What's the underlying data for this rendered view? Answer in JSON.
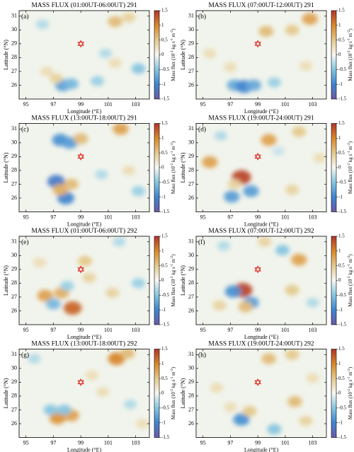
{
  "chart_data": [
    {
      "type": "contour",
      "title": "MASS FLUX (01:00UT-06:00UT) 291",
      "panel_label": "(a)",
      "xlabel": "Longitude (°E)",
      "ylabel": "Latitude (°N)",
      "cbar_label": [
        "Mass flux (10",
        "-2",
        " kg s",
        "-1",
        " m",
        "-2",
        ")"
      ],
      "xlim": [
        94.5,
        104
      ],
      "ylim": [
        25,
        31.4
      ],
      "xticks": [
        95,
        97,
        99,
        101,
        103
      ],
      "yticks": [
        26,
        27,
        28,
        29,
        30,
        31
      ],
      "clim": [
        -1.5,
        1.5
      ],
      "cticks": [
        -1.5,
        -1,
        -0.5,
        0,
        0.5,
        1,
        1.5
      ],
      "marker": {
        "lon": 99,
        "lat": 29,
        "color": "#e0302a"
      },
      "features": [
        [
          101.5,
          30.6,
          0.6
        ],
        [
          102.5,
          30.9,
          0.4
        ],
        [
          97.7,
          26.0,
          -0.8
        ],
        [
          98.3,
          26.1,
          -0.6
        ],
        [
          97.2,
          26.5,
          0.4
        ],
        [
          96.5,
          27.0,
          0.3
        ],
        [
          100.2,
          26.3,
          -0.4
        ],
        [
          101.5,
          27.6,
          0.3
        ],
        [
          96.2,
          30.4,
          -0.3
        ],
        [
          103.2,
          27.2,
          -0.5
        ],
        [
          100.8,
          28.3,
          -0.3
        ]
      ]
    },
    {
      "type": "contour",
      "title": "MASS FLUX (07:00UT-12:00UT) 291",
      "panel_label": "(b)",
      "xlabel": "Longitude (°E)",
      "ylabel": "Latitude (°N)",
      "cbar_label": [
        "Mass flux (10",
        "-2",
        " kg s",
        "-1",
        " m",
        "-2",
        ")"
      ],
      "xlim": [
        94.5,
        104
      ],
      "ylim": [
        25,
        31.4
      ],
      "xticks": [
        95,
        97,
        99,
        101,
        103
      ],
      "yticks": [
        26,
        27,
        28,
        29,
        30,
        31
      ],
      "clim": [
        -1.5,
        1.5
      ],
      "cticks": [
        -1.5,
        -1,
        -0.5,
        0,
        0.5,
        1,
        1.5
      ],
      "marker": {
        "lon": 99,
        "lat": 29,
        "color": "#e0302a"
      },
      "features": [
        [
          97.3,
          26.0,
          -0.7
        ],
        [
          98.0,
          25.9,
          -1.0
        ],
        [
          98.7,
          26.0,
          -0.7
        ],
        [
          99.6,
          29.9,
          0.6
        ],
        [
          101.5,
          30.0,
          0.5
        ],
        [
          102.8,
          30.8,
          0.8
        ],
        [
          97.0,
          27.3,
          0.3
        ],
        [
          100.2,
          26.2,
          -0.4
        ],
        [
          102.5,
          27.4,
          0.3
        ],
        [
          95.5,
          28.3,
          0.3
        ]
      ]
    },
    {
      "type": "contour",
      "title": "MASS FLUX (13:00UT-18:00UT) 291",
      "panel_label": "(c)",
      "xlabel": "Longitude (°E)",
      "ylabel": "Latitude (°N)",
      "cbar_label": [
        "Mass flux (10",
        "-2",
        " kg s",
        "-1",
        " m",
        "-2",
        ")"
      ],
      "xlim": [
        94.5,
        104
      ],
      "ylim": [
        25,
        31.4
      ],
      "xticks": [
        95,
        97,
        99,
        101,
        103
      ],
      "yticks": [
        26,
        27,
        28,
        29,
        30,
        31
      ],
      "clim": [
        -1.5,
        1.5
      ],
      "cticks": [
        -1.5,
        -1,
        -0.5,
        0,
        0.5,
        1,
        1.5
      ],
      "marker": {
        "lon": 99,
        "lat": 29,
        "color": "#e0302a"
      },
      "features": [
        [
          97.5,
          30.2,
          -0.9
        ],
        [
          98.2,
          30.0,
          -0.8
        ],
        [
          101.9,
          31.0,
          0.8
        ],
        [
          99.0,
          30.3,
          0.6
        ],
        [
          97.2,
          27.2,
          -1.1
        ],
        [
          97.9,
          26.0,
          -1.0
        ],
        [
          97.5,
          26.6,
          0.7
        ],
        [
          98.3,
          27.0,
          0.6
        ],
        [
          102.5,
          28.0,
          0.3
        ],
        [
          100.5,
          27.7,
          -0.3
        ],
        [
          103.2,
          26.5,
          -0.4
        ]
      ]
    },
    {
      "type": "contour",
      "title": "MASS FLUX (19:00UT-24:00UT) 291",
      "panel_label": "(d)",
      "xlabel": "Longitude (°E)",
      "ylabel": "Latitude (°N)",
      "cbar_label": [
        "Mass flux (10",
        "-2",
        " kg s",
        "-1",
        " m",
        "-2",
        ")"
      ],
      "xlim": [
        94.5,
        104
      ],
      "ylim": [
        25,
        31.4
      ],
      "xticks": [
        95,
        97,
        99,
        101,
        103
      ],
      "yticks": [
        26,
        27,
        28,
        29,
        30,
        31
      ],
      "clim": [
        -1.5,
        1.5
      ],
      "cticks": [
        -1.5,
        -1,
        -0.5,
        0,
        0.5,
        1,
        1.5
      ],
      "marker": {
        "lon": 99,
        "lat": 29,
        "color": "#e0302a"
      },
      "features": [
        [
          99.8,
          30.2,
          0.8
        ],
        [
          97.8,
          27.5,
          1.4
        ],
        [
          98.5,
          26.5,
          -0.8
        ],
        [
          97.1,
          26.1,
          -0.8
        ],
        [
          95.5,
          28.6,
          0.8
        ],
        [
          102.0,
          30.8,
          0.5
        ],
        [
          96.3,
          30.5,
          -0.3
        ],
        [
          97.3,
          27.0,
          0.4
        ],
        [
          101.5,
          26.6,
          0.4
        ],
        [
          103.5,
          28.9,
          0.3
        ],
        [
          100.5,
          29.4,
          -0.2
        ]
      ]
    },
    {
      "type": "contour",
      "title": "MASS FLUX (01:00UT-06:00UT) 292",
      "panel_label": "(e)",
      "xlabel": "Longitude (°E)",
      "ylabel": "Latitude (°N)",
      "cbar_label": [
        "Mass flux (10",
        "-2",
        " kg s",
        "-1",
        " m",
        "-2",
        ")"
      ],
      "xlim": [
        94.5,
        104
      ],
      "ylim": [
        25,
        31.4
      ],
      "xticks": [
        95,
        97,
        99,
        101,
        103
      ],
      "yticks": [
        26,
        27,
        28,
        29,
        30,
        31
      ],
      "clim": [
        -1.5,
        1.5
      ],
      "cticks": [
        -1.5,
        -1,
        -0.5,
        0,
        0.5,
        1,
        1.5
      ],
      "marker": {
        "lon": 99,
        "lat": 29,
        "color": "#e0302a"
      },
      "features": [
        [
          98.4,
          26.2,
          1.2
        ],
        [
          97.6,
          27.3,
          0.7
        ],
        [
          96.4,
          27.1,
          0.8
        ],
        [
          97.0,
          26.5,
          -0.6
        ],
        [
          98.0,
          27.8,
          -0.4
        ],
        [
          99.3,
          29.6,
          0.5
        ],
        [
          99.6,
          28.4,
          0.4
        ],
        [
          101.3,
          27.3,
          0.4
        ],
        [
          103.2,
          28.0,
          -0.4
        ],
        [
          101.8,
          31.0,
          -0.3
        ],
        [
          96.0,
          29.5,
          0.3
        ]
      ]
    },
    {
      "type": "contour",
      "title": "MASS FLUX (07:00UT-12:00UT) 292",
      "panel_label": "(f)",
      "xlabel": "Longitude (°E)",
      "ylabel": "Latitude (°N)",
      "cbar_label": [
        "Mass flux (10",
        "-2",
        " kg s",
        "-1",
        " m",
        "-2",
        ")"
      ],
      "xlim": [
        94.5,
        104
      ],
      "ylim": [
        25,
        31.4
      ],
      "xticks": [
        95,
        97,
        99,
        101,
        103
      ],
      "yticks": [
        26,
        27,
        28,
        29,
        30,
        31
      ],
      "clim": [
        -1.5,
        1.5
      ],
      "cticks": [
        -1.5,
        -1,
        -0.5,
        0,
        0.5,
        1,
        1.5
      ],
      "marker": {
        "lon": 99,
        "lat": 29,
        "color": "#e0302a"
      },
      "features": [
        [
          97.9,
          27.5,
          1.4
        ],
        [
          97.2,
          27.4,
          -0.9
        ],
        [
          98.5,
          26.6,
          -0.8
        ],
        [
          98.1,
          26.3,
          0.6
        ],
        [
          102.0,
          29.7,
          0.8
        ],
        [
          100.8,
          30.4,
          -0.5
        ],
        [
          99.5,
          31.0,
          0.4
        ],
        [
          96.2,
          26.4,
          0.4
        ],
        [
          101.5,
          27.5,
          0.5
        ],
        [
          103.0,
          26.6,
          -0.3
        ],
        [
          96.5,
          30.7,
          -0.3
        ]
      ]
    },
    {
      "type": "contour",
      "title": "MASS FLUX (13:00UT-18:00UT) 292",
      "panel_label": "(g)",
      "xlabel": "Longitude (°E)",
      "ylabel": "Latitude (°N)",
      "cbar_label": [
        "Mass flux (10",
        "-2",
        " kg s",
        "-1",
        " m",
        "-2",
        ")"
      ],
      "xlim": [
        94.5,
        104
      ],
      "ylim": [
        25,
        31.4
      ],
      "xticks": [
        95,
        97,
        99,
        101,
        103
      ],
      "yticks": [
        26,
        27,
        28,
        29,
        30,
        31
      ],
      "clim": [
        -1.5,
        1.5
      ],
      "cticks": [
        -1.5,
        -1,
        -0.5,
        0,
        0.5,
        1,
        1.5
      ],
      "marker": {
        "lon": 99,
        "lat": 29,
        "color": "#e0302a"
      },
      "features": [
        [
          97.3,
          26.4,
          0.9
        ],
        [
          98.3,
          26.6,
          0.8
        ],
        [
          97.8,
          27.0,
          -0.5
        ],
        [
          96.8,
          27.0,
          -0.5
        ],
        [
          101.6,
          30.7,
          1.0
        ],
        [
          102.4,
          31.1,
          0.6
        ],
        [
          99.8,
          29.5,
          0.3
        ],
        [
          100.6,
          28.3,
          0.3
        ],
        [
          95.6,
          30.7,
          -0.3
        ],
        [
          102.6,
          27.4,
          -0.3
        ],
        [
          103.5,
          26.0,
          0.3
        ]
      ]
    },
    {
      "type": "contour",
      "title": "MASS FLUX (19:00UT-24:00UT) 292",
      "panel_label": "(h)",
      "xlabel": "Longitude (°E)",
      "ylabel": "Latitude (°N)",
      "cbar_label": [
        "Mass flux (10",
        "-2",
        " kg s",
        "-1",
        " m",
        "-2",
        ")"
      ],
      "xlim": [
        94.5,
        104
      ],
      "ylim": [
        25,
        31.4
      ],
      "xticks": [
        95,
        97,
        99,
        101,
        103
      ],
      "yticks": [
        26,
        27,
        28,
        29,
        30,
        31
      ],
      "clim": [
        -1.5,
        1.5
      ],
      "cticks": [
        -1.5,
        -1,
        -0.5,
        0,
        0.5,
        1,
        1.5
      ],
      "marker": {
        "lon": 99,
        "lat": 29,
        "color": "#e0302a"
      },
      "features": [
        [
          97.8,
          26.3,
          -0.9
        ],
        [
          98.4,
          26.9,
          0.5
        ],
        [
          99.8,
          30.7,
          0.6
        ],
        [
          101.5,
          31.0,
          0.5
        ],
        [
          101.7,
          27.6,
          0.6
        ],
        [
          102.5,
          26.2,
          0.4
        ],
        [
          100.2,
          25.6,
          -0.5
        ],
        [
          97.0,
          27.2,
          0.3
        ],
        [
          96.0,
          28.6,
          0.3
        ],
        [
          103.0,
          29.3,
          0.3
        ]
      ]
    }
  ]
}
